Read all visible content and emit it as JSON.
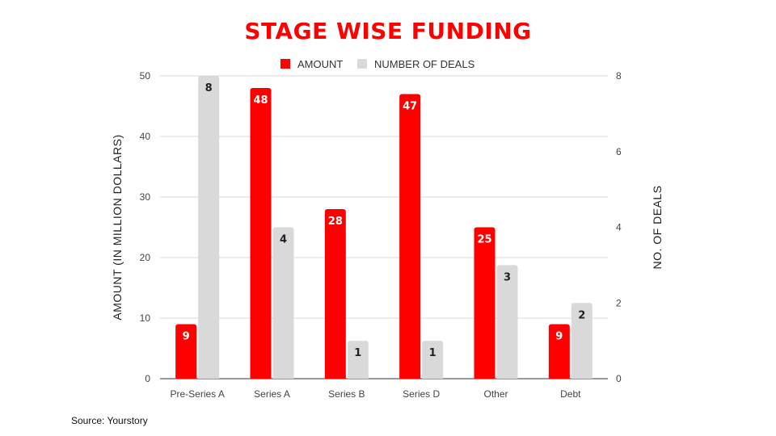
{
  "chart_data": {
    "type": "bar",
    "title": "STAGE WISE FUNDING",
    "categories": [
      "Pre-Series A",
      "Series A",
      "Series B",
      "Series D",
      "Other",
      "Debt"
    ],
    "series": [
      {
        "name": "AMOUNT",
        "axis": "left",
        "color": "#ff0000",
        "label_color": "#ffffff",
        "values": [
          9,
          48,
          28,
          47,
          25,
          9
        ]
      },
      {
        "name": "NUMBER OF DEALS",
        "axis": "right",
        "color": "#d9d9d9",
        "label_color": "#222222",
        "values": [
          8,
          4,
          1,
          1,
          3,
          2
        ]
      }
    ],
    "ylabel": "AMOUNT (IN MILLION DOLLARS)",
    "y2label": "NO. OF DEALS",
    "ylim": [
      0,
      50
    ],
    "yticks": [
      0,
      10,
      20,
      30,
      40,
      50
    ],
    "y2lim": [
      0,
      8
    ],
    "y2ticks": [
      0,
      2,
      4,
      6,
      8
    ],
    "grid": true,
    "legend": "top-center",
    "title_color": "#ff0000"
  },
  "source": "Source: Yourstory"
}
